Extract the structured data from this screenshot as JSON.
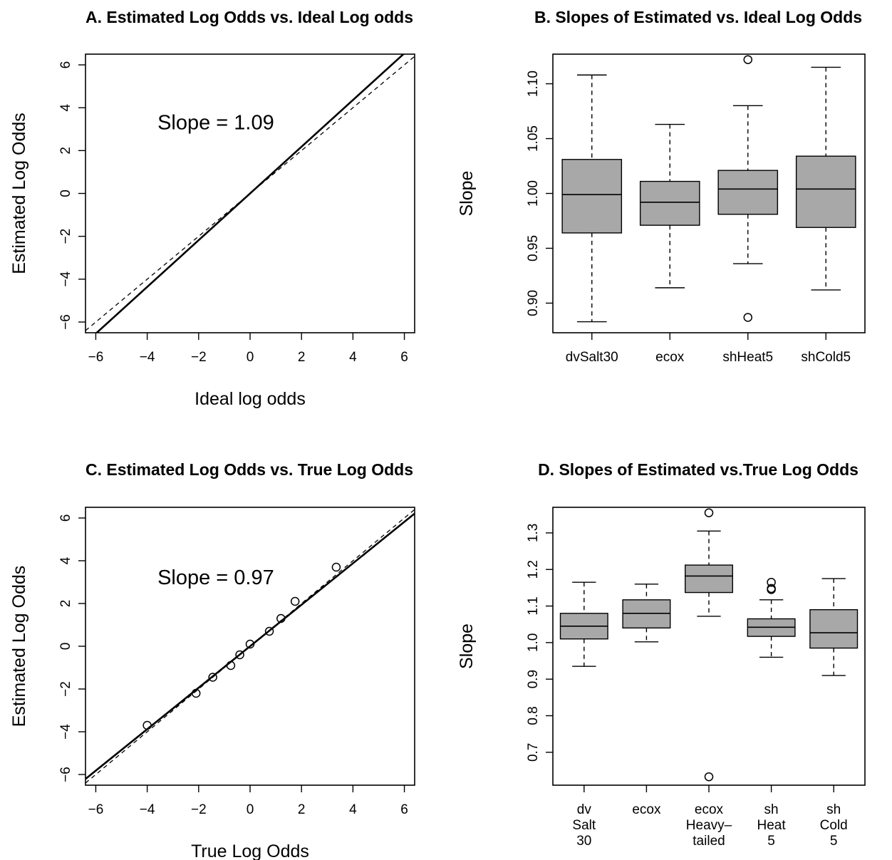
{
  "chart_data": [
    {
      "id": "A",
      "type": "line",
      "title": "A. Estimated Log Odds vs. Ideal Log odds",
      "xlabel": "Ideal log odds",
      "ylabel": "Estimated Log Odds",
      "xlim": [
        -6.4,
        6.4
      ],
      "ylim": [
        -6.5,
        6.5
      ],
      "xticks": [
        -6,
        -4,
        -2,
        0,
        2,
        4,
        6
      ],
      "yticks": [
        -6,
        -4,
        -2,
        0,
        2,
        4,
        6
      ],
      "annotation": "Slope = 1.09",
      "annotation_pos": [
        -3.6,
        3.0
      ],
      "fit_line": {
        "slope": 1.09,
        "intercept": 0.0,
        "style": "solid"
      },
      "reference_line": {
        "slope": 1.0,
        "intercept": 0.0,
        "style": "dashed"
      },
      "points": []
    },
    {
      "id": "B",
      "type": "boxplot",
      "title": "B. Slopes of Estimated vs. Ideal Log Odds",
      "xlabel": "",
      "ylabel": "Slope",
      "ylim": [
        0.873,
        1.127
      ],
      "yticks": [
        0.9,
        0.95,
        1.0,
        1.05,
        1.1
      ],
      "ytick_labels": [
        "0.90",
        "0.95",
        "1.00",
        "1.05",
        "1.10"
      ],
      "categories": [
        [
          "dvSalt30"
        ],
        [
          "ecox"
        ],
        [
          "shHeat5"
        ],
        [
          "shCold5"
        ]
      ],
      "boxes": [
        {
          "whisker_low": 0.883,
          "q1": 0.964,
          "median": 0.999,
          "q3": 1.031,
          "whisker_high": 1.108,
          "outliers": []
        },
        {
          "whisker_low": 0.914,
          "q1": 0.971,
          "median": 0.992,
          "q3": 1.011,
          "whisker_high": 1.063,
          "outliers": []
        },
        {
          "whisker_low": 0.936,
          "q1": 0.981,
          "median": 1.004,
          "q3": 1.021,
          "whisker_high": 1.08,
          "outliers": [
            0.887,
            1.122
          ]
        },
        {
          "whisker_low": 0.912,
          "q1": 0.969,
          "median": 1.004,
          "q3": 1.034,
          "whisker_high": 1.115,
          "outliers": []
        }
      ]
    },
    {
      "id": "C",
      "type": "scatter",
      "title": "C. Estimated Log Odds vs. True Log Odds",
      "xlabel": "True Log Odds",
      "ylabel": "Estimated Log Odds",
      "xlim": [
        -6.4,
        6.4
      ],
      "ylim": [
        -6.5,
        6.5
      ],
      "xticks": [
        -6,
        -4,
        -2,
        0,
        2,
        4,
        6
      ],
      "yticks": [
        -6,
        -4,
        -2,
        0,
        2,
        4,
        6
      ],
      "annotation": "Slope = 0.97",
      "annotation_pos": [
        -3.6,
        2.9
      ],
      "fit_line": {
        "slope": 0.97,
        "intercept": 0.0,
        "style": "solid"
      },
      "reference_line": {
        "slope": 1.0,
        "intercept": 0.0,
        "style": "dashed"
      },
      "points": [
        {
          "x": -4.0,
          "y": -3.7
        },
        {
          "x": -2.1,
          "y": -2.2
        },
        {
          "x": -1.45,
          "y": -1.45
        },
        {
          "x": -0.75,
          "y": -0.9
        },
        {
          "x": -0.4,
          "y": -0.4
        },
        {
          "x": 0.0,
          "y": 0.1
        },
        {
          "x": 0.75,
          "y": 0.7
        },
        {
          "x": 1.2,
          "y": 1.3
        },
        {
          "x": 1.75,
          "y": 2.1
        },
        {
          "x": 3.35,
          "y": 3.7
        }
      ]
    },
    {
      "id": "D",
      "type": "boxplot",
      "title": "D. Slopes of Estimated vs.True Log Odds",
      "xlabel": "",
      "ylabel": "Slope",
      "ylim": [
        0.61,
        1.37
      ],
      "yticks": [
        0.7,
        0.8,
        0.9,
        1.0,
        1.1,
        1.2,
        1.3
      ],
      "ytick_labels": [
        "0.7",
        "0.8",
        "0.9",
        "1.0",
        "1.1",
        "1.2",
        "1.3"
      ],
      "categories": [
        [
          "dv",
          "Salt",
          "30"
        ],
        [
          "ecox"
        ],
        [
          "ecox",
          "Heavy–",
          "tailed"
        ],
        [
          "sh",
          "Heat",
          "5"
        ],
        [
          "sh",
          "Cold",
          "5"
        ]
      ],
      "boxes": [
        {
          "whisker_low": 0.935,
          "q1": 1.01,
          "median": 1.045,
          "q3": 1.08,
          "whisker_high": 1.165,
          "outliers": []
        },
        {
          "whisker_low": 1.002,
          "q1": 1.04,
          "median": 1.08,
          "q3": 1.117,
          "whisker_high": 1.16,
          "outliers": []
        },
        {
          "whisker_low": 1.072,
          "q1": 1.137,
          "median": 1.182,
          "q3": 1.212,
          "whisker_high": 1.305,
          "outliers": [
            1.355,
            0.633
          ]
        },
        {
          "whisker_low": 0.96,
          "q1": 1.017,
          "median": 1.042,
          "q3": 1.065,
          "whisker_high": 1.117,
          "outliers": [
            1.145,
            1.148,
            1.165
          ]
        },
        {
          "whisker_low": 0.91,
          "q1": 0.985,
          "median": 1.027,
          "q3": 1.09,
          "whisker_high": 1.175,
          "outliers": []
        }
      ]
    }
  ]
}
